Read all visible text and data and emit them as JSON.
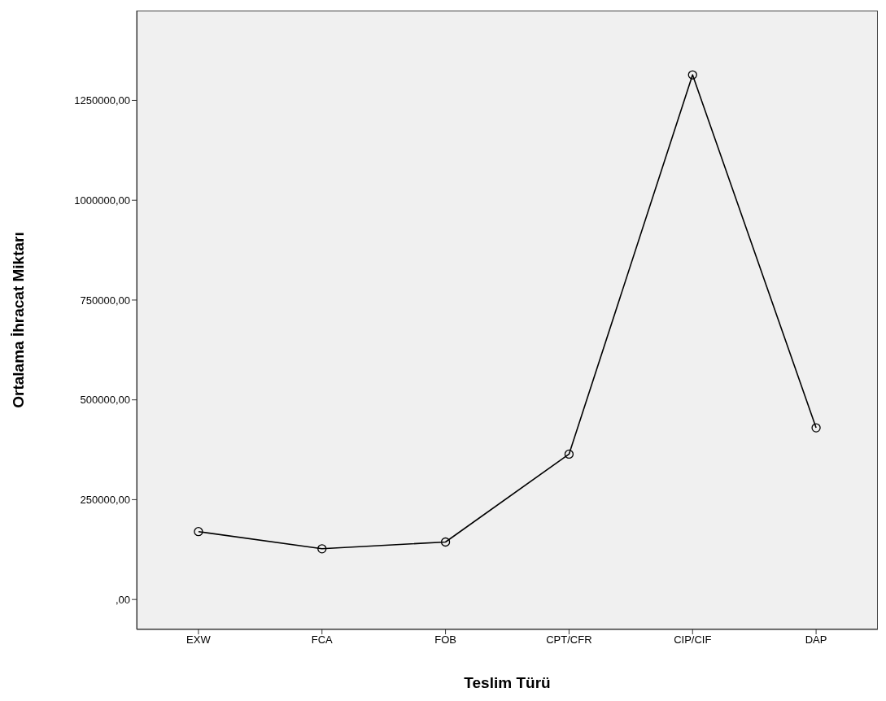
{
  "chart_data": {
    "type": "line",
    "xlabel": "Teslim Türü",
    "ylabel": "Ortalama İhracat Miktarı",
    "categories": [
      "EXW",
      "FCA",
      "FOB",
      "CPT/CFR",
      "CIP/CIF",
      "DAP"
    ],
    "series": [
      {
        "color": "#000000",
        "values": [
          170000,
          127000,
          144000,
          364000,
          1314000,
          430000
        ]
      }
    ],
    "ylim": [
      -75000,
      1475000
    ],
    "yticks": [
      {
        "value": 0,
        "label": ",00"
      },
      {
        "value": 250000,
        "label": "250000,00"
      },
      {
        "value": 500000,
        "label": "500000,00"
      },
      {
        "value": 750000,
        "label": "750000,00"
      },
      {
        "value": 1000000,
        "label": "1000000,00"
      },
      {
        "value": 1250000,
        "label": "1250000,00"
      }
    ],
    "grid": false,
    "legend": false,
    "marker": "circle",
    "line_style": "solid"
  }
}
